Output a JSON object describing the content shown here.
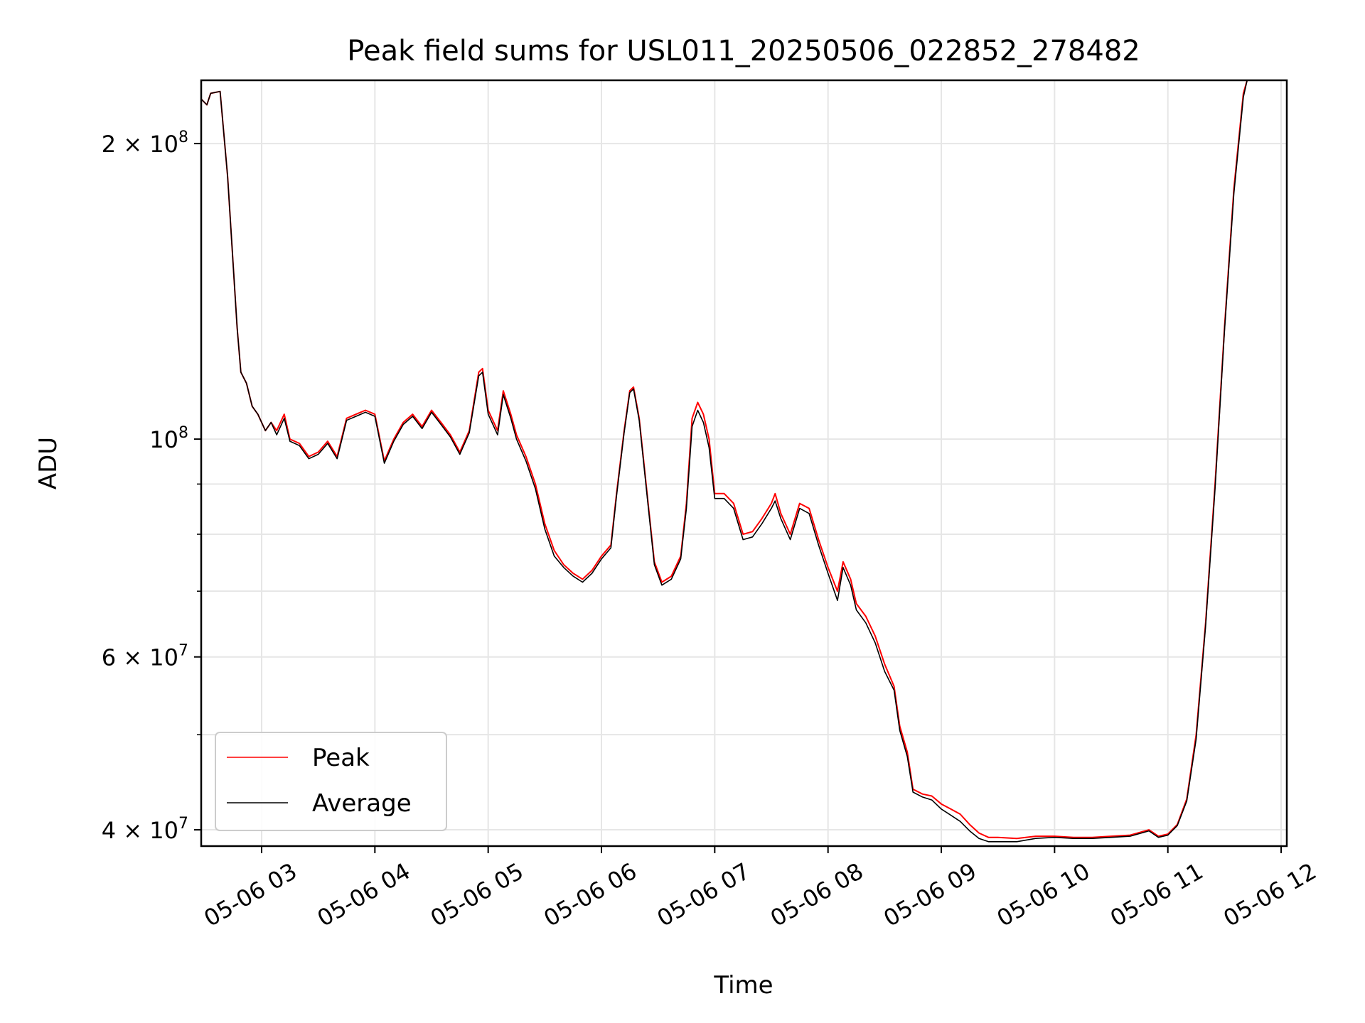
{
  "chart_data": {
    "type": "line",
    "title": "Peak field sums for USL011_20250506_022852_278482",
    "xlabel": "Time",
    "ylabel": "ADU",
    "yscale": "log",
    "xlim": [
      "2025-05-06 02:28",
      "2025-05-06 12:03"
    ],
    "ylim": [
      38500000,
      232000000
    ],
    "grid": true,
    "legend_position": "lower-left",
    "x_ticks": [
      "05-06 03",
      "05-06 04",
      "05-06 05",
      "05-06 06",
      "05-06 07",
      "05-06 08",
      "05-06 09",
      "05-06 10",
      "05-06 11",
      "05-06 12"
    ],
    "y_ticks": [
      {
        "value": 40000000,
        "mantissa": "4",
        "exponent": "7",
        "sep": "×"
      },
      {
        "value": 60000000,
        "mantissa": "6",
        "exponent": "7",
        "sep": "×"
      },
      {
        "value": 100000000,
        "mantissa": "",
        "exponent": "8",
        "sep": ""
      },
      {
        "value": 200000000,
        "mantissa": "2",
        "exponent": "8",
        "sep": "×"
      }
    ],
    "y_minor_ticks": [
      50000000,
      70000000,
      80000000,
      90000000
    ],
    "series": [
      {
        "name": "Peak",
        "color": "#ff0000",
        "points": [
          [
            "02:28",
            222000000
          ],
          [
            "02:31",
            219000000
          ],
          [
            "02:33",
            225000000
          ],
          [
            "02:38",
            226000000
          ],
          [
            "02:42",
            185000000
          ],
          [
            "02:45",
            150000000
          ],
          [
            "02:47",
            130000000
          ],
          [
            "02:49",
            117000000
          ],
          [
            "02:52",
            114000000
          ],
          [
            "02:55",
            108000000
          ],
          [
            "02:58",
            106000000
          ],
          [
            "03:02",
            102000000
          ],
          [
            "03:05",
            104000000
          ],
          [
            "03:08",
            102000000
          ],
          [
            "03:12",
            106000000
          ],
          [
            "03:15",
            100000000
          ],
          [
            "03:20",
            99000000
          ],
          [
            "03:25",
            96000000
          ],
          [
            "03:30",
            97000000
          ],
          [
            "03:35",
            99500000
          ],
          [
            "03:40",
            96000000
          ],
          [
            "03:45",
            105000000
          ],
          [
            "03:50",
            106000000
          ],
          [
            "03:55",
            107000000
          ],
          [
            "04:00",
            106000000
          ],
          [
            "04:05",
            95000000
          ],
          [
            "04:10",
            100000000
          ],
          [
            "04:15",
            104000000
          ],
          [
            "04:20",
            106000000
          ],
          [
            "04:25",
            103000000
          ],
          [
            "04:30",
            107000000
          ],
          [
            "04:35",
            104000000
          ],
          [
            "04:40",
            101000000
          ],
          [
            "04:45",
            97000000
          ],
          [
            "04:50",
            102000000
          ],
          [
            "04:55",
            117000000
          ],
          [
            "04:57",
            118000000
          ],
          [
            "05:00",
            107000000
          ],
          [
            "05:05",
            102000000
          ],
          [
            "05:08",
            112000000
          ],
          [
            "05:12",
            106000000
          ],
          [
            "05:15",
            101000000
          ],
          [
            "05:20",
            96000000
          ],
          [
            "05:25",
            90000000
          ],
          [
            "05:30",
            82000000
          ],
          [
            "05:35",
            77000000
          ],
          [
            "05:40",
            74500000
          ],
          [
            "05:45",
            73000000
          ],
          [
            "05:50",
            72000000
          ],
          [
            "05:55",
            73500000
          ],
          [
            "06:00",
            76000000
          ],
          [
            "06:05",
            78000000
          ],
          [
            "06:08",
            88000000
          ],
          [
            "06:12",
            102000000
          ],
          [
            "06:15",
            112000000
          ],
          [
            "06:17",
            113000000
          ],
          [
            "06:20",
            105000000
          ],
          [
            "06:25",
            85000000
          ],
          [
            "06:28",
            75000000
          ],
          [
            "06:32",
            71500000
          ],
          [
            "06:37",
            72500000
          ],
          [
            "06:42",
            76000000
          ],
          [
            "06:45",
            86000000
          ],
          [
            "06:48",
            105000000
          ],
          [
            "06:51",
            109000000
          ],
          [
            "06:54",
            106000000
          ],
          [
            "06:57",
            100000000
          ],
          [
            "07:00",
            88000000
          ],
          [
            "07:05",
            88000000
          ],
          [
            "07:10",
            86000000
          ],
          [
            "07:15",
            80000000
          ],
          [
            "07:20",
            80500000
          ],
          [
            "07:25",
            83000000
          ],
          [
            "07:30",
            86000000
          ],
          [
            "07:32",
            88000000
          ],
          [
            "07:35",
            84000000
          ],
          [
            "07:40",
            80000000
          ],
          [
            "07:45",
            86000000
          ],
          [
            "07:50",
            85000000
          ],
          [
            "07:55",
            79000000
          ],
          [
            "08:00",
            74000000
          ],
          [
            "08:05",
            70000000
          ],
          [
            "08:08",
            75000000
          ],
          [
            "08:12",
            72000000
          ],
          [
            "08:15",
            68000000
          ],
          [
            "08:20",
            66000000
          ],
          [
            "08:25",
            63000000
          ],
          [
            "08:30",
            59000000
          ],
          [
            "08:35",
            56000000
          ],
          [
            "08:38",
            51000000
          ],
          [
            "08:42",
            48000000
          ],
          [
            "08:45",
            44000000
          ],
          [
            "08:50",
            43500000
          ],
          [
            "08:55",
            43300000
          ],
          [
            "09:00",
            42500000
          ],
          [
            "09:05",
            42000000
          ],
          [
            "09:10",
            41500000
          ],
          [
            "09:15",
            40500000
          ],
          [
            "09:20",
            39700000
          ],
          [
            "09:25",
            39300000
          ],
          [
            "09:30",
            39300000
          ],
          [
            "09:40",
            39200000
          ],
          [
            "09:50",
            39400000
          ],
          [
            "10:00",
            39400000
          ],
          [
            "10:10",
            39300000
          ],
          [
            "10:20",
            39300000
          ],
          [
            "10:30",
            39400000
          ],
          [
            "10:40",
            39500000
          ],
          [
            "10:50",
            40000000
          ],
          [
            "10:55",
            39400000
          ],
          [
            "11:00",
            39600000
          ],
          [
            "11:05",
            40500000
          ],
          [
            "11:10",
            43000000
          ],
          [
            "11:15",
            50000000
          ],
          [
            "11:20",
            65000000
          ],
          [
            "11:25",
            90000000
          ],
          [
            "11:30",
            130000000
          ],
          [
            "11:35",
            180000000
          ],
          [
            "11:40",
            225000000
          ],
          [
            "11:42",
            232000000
          ]
        ]
      },
      {
        "name": "Average",
        "color": "#000000",
        "points": [
          [
            "02:28",
            222000000
          ],
          [
            "02:31",
            219000000
          ],
          [
            "02:33",
            225000000
          ],
          [
            "02:38",
            226000000
          ],
          [
            "02:42",
            185000000
          ],
          [
            "02:45",
            150000000
          ],
          [
            "02:47",
            130000000
          ],
          [
            "02:49",
            117000000
          ],
          [
            "02:52",
            114000000
          ],
          [
            "02:55",
            108000000
          ],
          [
            "02:58",
            106000000
          ],
          [
            "03:02",
            102000000
          ],
          [
            "03:05",
            104000000
          ],
          [
            "03:08",
            101000000
          ],
          [
            "03:12",
            105000000
          ],
          [
            "03:15",
            99500000
          ],
          [
            "03:20",
            98500000
          ],
          [
            "03:25",
            95500000
          ],
          [
            "03:30",
            96500000
          ],
          [
            "03:35",
            99000000
          ],
          [
            "03:40",
            95500000
          ],
          [
            "03:45",
            104500000
          ],
          [
            "03:50",
            105500000
          ],
          [
            "03:55",
            106500000
          ],
          [
            "04:00",
            105500000
          ],
          [
            "04:05",
            94500000
          ],
          [
            "04:10",
            99500000
          ],
          [
            "04:15",
            103500000
          ],
          [
            "04:20",
            105500000
          ],
          [
            "04:25",
            102500000
          ],
          [
            "04:30",
            106500000
          ],
          [
            "04:35",
            103500000
          ],
          [
            "04:40",
            100500000
          ],
          [
            "04:45",
            96500000
          ],
          [
            "04:50",
            101500000
          ],
          [
            "04:55",
            116000000
          ],
          [
            "04:57",
            117000000
          ],
          [
            "05:00",
            106000000
          ],
          [
            "05:05",
            101000000
          ],
          [
            "05:08",
            111000000
          ],
          [
            "05:12",
            105000000
          ],
          [
            "05:15",
            100000000
          ],
          [
            "05:20",
            95000000
          ],
          [
            "05:25",
            89000000
          ],
          [
            "05:30",
            81000000
          ],
          [
            "05:35",
            76000000
          ],
          [
            "05:40",
            74000000
          ],
          [
            "05:45",
            72500000
          ],
          [
            "05:50",
            71500000
          ],
          [
            "05:55",
            73000000
          ],
          [
            "06:00",
            75500000
          ],
          [
            "06:05",
            77500000
          ],
          [
            "06:08",
            87500000
          ],
          [
            "06:12",
            101500000
          ],
          [
            "06:15",
            111500000
          ],
          [
            "06:17",
            112500000
          ],
          [
            "06:20",
            104500000
          ],
          [
            "06:25",
            84500000
          ],
          [
            "06:28",
            74500000
          ],
          [
            "06:32",
            71000000
          ],
          [
            "06:37",
            72000000
          ],
          [
            "06:42",
            75500000
          ],
          [
            "06:45",
            85000000
          ],
          [
            "06:48",
            103000000
          ],
          [
            "06:51",
            107000000
          ],
          [
            "06:54",
            104000000
          ],
          [
            "06:57",
            98000000
          ],
          [
            "07:00",
            87000000
          ],
          [
            "07:05",
            87000000
          ],
          [
            "07:10",
            85000000
          ],
          [
            "07:15",
            79000000
          ],
          [
            "07:20",
            79500000
          ],
          [
            "07:25",
            82000000
          ],
          [
            "07:30",
            85000000
          ],
          [
            "07:32",
            86500000
          ],
          [
            "07:35",
            83000000
          ],
          [
            "07:40",
            79000000
          ],
          [
            "07:45",
            85000000
          ],
          [
            "07:50",
            84000000
          ],
          [
            "07:55",
            78000000
          ],
          [
            "08:00",
            73000000
          ],
          [
            "08:05",
            68500000
          ],
          [
            "08:08",
            74000000
          ],
          [
            "08:12",
            71000000
          ],
          [
            "08:15",
            67000000
          ],
          [
            "08:20",
            65000000
          ],
          [
            "08:25",
            62000000
          ],
          [
            "08:30",
            58000000
          ],
          [
            "08:35",
            55500000
          ],
          [
            "08:38",
            50500000
          ],
          [
            "08:42",
            47500000
          ],
          [
            "08:45",
            43700000
          ],
          [
            "08:50",
            43200000
          ],
          [
            "08:55",
            42900000
          ],
          [
            "09:00",
            42000000
          ],
          [
            "09:05",
            41400000
          ],
          [
            "09:10",
            40800000
          ],
          [
            "09:15",
            39900000
          ],
          [
            "09:20",
            39200000
          ],
          [
            "09:25",
            38900000
          ],
          [
            "09:30",
            38900000
          ],
          [
            "09:40",
            38900000
          ],
          [
            "09:50",
            39200000
          ],
          [
            "10:00",
            39300000
          ],
          [
            "10:10",
            39200000
          ],
          [
            "10:20",
            39200000
          ],
          [
            "10:30",
            39300000
          ],
          [
            "10:40",
            39400000
          ],
          [
            "10:50",
            39900000
          ],
          [
            "10:55",
            39300000
          ],
          [
            "11:00",
            39500000
          ],
          [
            "11:05",
            40400000
          ],
          [
            "11:10",
            42800000
          ],
          [
            "11:15",
            49500000
          ],
          [
            "11:20",
            64500000
          ],
          [
            "11:25",
            89000000
          ],
          [
            "11:30",
            129000000
          ],
          [
            "11:35",
            178000000
          ],
          [
            "11:40",
            223000000
          ],
          [
            "11:42",
            232000000
          ]
        ]
      }
    ]
  }
}
